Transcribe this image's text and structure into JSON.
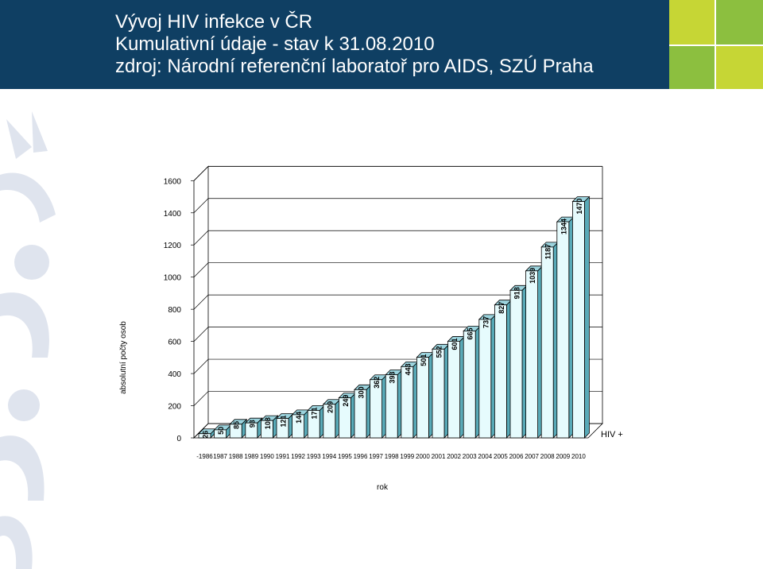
{
  "header": {
    "title_lines": [
      "Vývoj HIV infekce v ČR",
      "Kumulativní údaje - stav k 31.08.2010",
      "zdroj: Národní referenční laboratoř pro AIDS, SZÚ Praha"
    ]
  },
  "colors": {
    "header_bg": "#0f3f63",
    "tile_light_green": "#c6d635",
    "tile_green": "#8cbf3f",
    "bar_front": "#e6fbfd",
    "bar_top": "#9bd3dd",
    "bar_side": "#58aab8",
    "decor": "#dfe4ee"
  },
  "chart_data": {
    "type": "bar",
    "style": "3d",
    "categories": [
      "-1986",
      "1987",
      "1988",
      "1989",
      "1990",
      "1991",
      "1992",
      "1993",
      "1994",
      "1995",
      "1996",
      "1997",
      "1998",
      "1999",
      "2000",
      "2001",
      "2002",
      "2003",
      "2004",
      "2005",
      "2006",
      "2007",
      "2008",
      "2009",
      "2010"
    ],
    "series": [
      {
        "name": "HIV +",
        "values": [
          26,
          50,
          85,
          93,
          108,
          121,
          144,
          171,
          209,
          249,
          300,
          362,
          393,
          443,
          501,
          552,
          601,
          665,
          737,
          827,
          918,
          1039,
          1187,
          1344,
          1470
        ]
      }
    ],
    "data_labels": [
      "26",
      "50",
      "85",
      "93",
      "108",
      "121",
      "144",
      "171",
      "209",
      "249",
      "300",
      "362",
      "393",
      "443",
      "501",
      "552",
      "601",
      "665",
      "737",
      "827",
      "918",
      "1039",
      "1187",
      "1344",
      "1470"
    ],
    "y_ticks": [
      "0",
      "200",
      "400",
      "600",
      "800",
      "1000",
      "1200",
      "1400",
      "1600"
    ],
    "ylim": [
      0,
      1600
    ],
    "xlabel": "rok",
    "ylabel": "absolutní počty osob",
    "legend": "right",
    "grid": true
  }
}
